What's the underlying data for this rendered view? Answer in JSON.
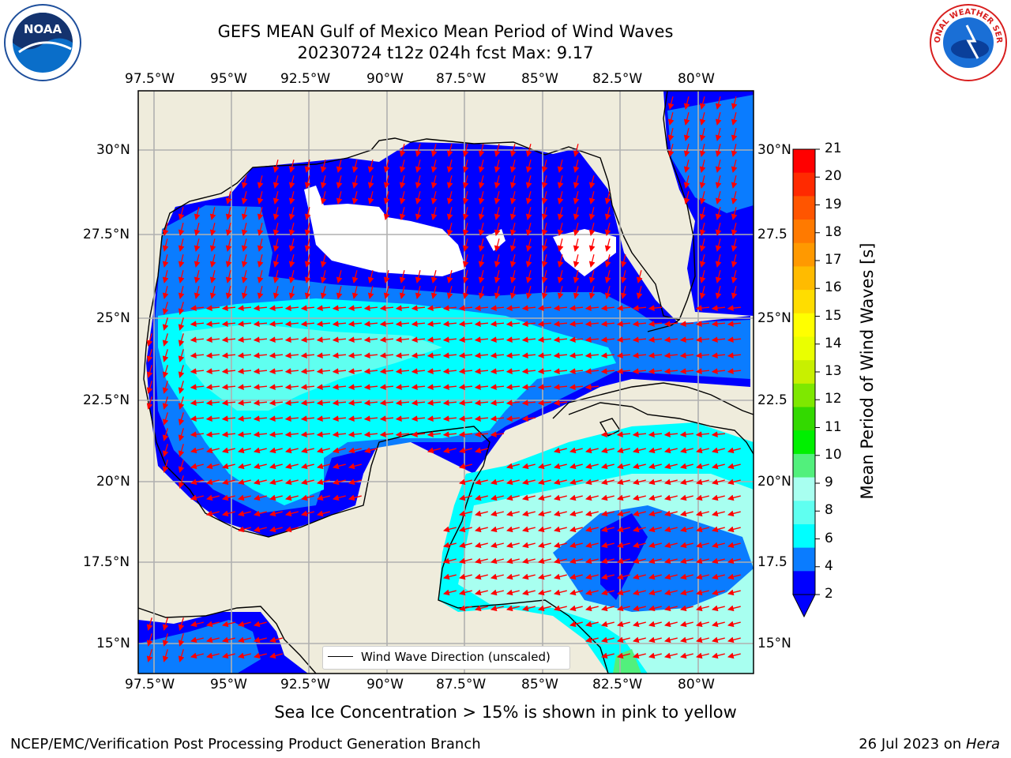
{
  "title_line1": "GEFS MEAN Gulf of Mexico Mean Period of Wind Waves",
  "title_line2": "20230724 t12z 024h fcst   Max: 9.17",
  "lon_labels": [
    "97.5°W",
    "95°W",
    "92.5°W",
    "90°W",
    "87.5°W",
    "85°W",
    "82.5°W",
    "80°W"
  ],
  "lat_labels_left": [
    "30°N",
    "27.5°N",
    "25°N",
    "22.5°N",
    "20°N",
    "17.5°N",
    "15°N"
  ],
  "lat_labels_right": [
    "30°N",
    "27.5",
    "25°N",
    "22.5",
    "20°N",
    "17.5",
    "15°N"
  ],
  "legend_text": "Wind Wave Direction (unscaled)",
  "colorbar": {
    "label": "Mean Period of Wind Waves [s]",
    "ticks": [
      "21",
      "20",
      "19",
      "18",
      "17",
      "16",
      "15",
      "14",
      "13",
      "12",
      "11",
      "10",
      "9",
      "8",
      "6",
      "4",
      "2"
    ],
    "colors": [
      "#ff0000",
      "#ff2a00",
      "#ff5500",
      "#ff7a00",
      "#ff9900",
      "#ffbb00",
      "#ffdd00",
      "#ffff00",
      "#eaff00",
      "#c8f000",
      "#7ee800",
      "#33d900",
      "#00f000",
      "#52f07c",
      "#a8fff0",
      "#5ffff0",
      "#00ffff",
      "#0a7cff",
      "#0000ff"
    ]
  },
  "bottom_note": "Sea Ice Concentration > 15% is shown in pink to yellow",
  "footer_left": "NCEP/EMC/Verification Post Processing Product Generation Branch",
  "footer_right_date": "26 Jul 2023 on ",
  "footer_right_host": "Hera",
  "logos": {
    "left": "NOAA",
    "right_text": "NATIONAL WEATHER SERVICE"
  }
}
